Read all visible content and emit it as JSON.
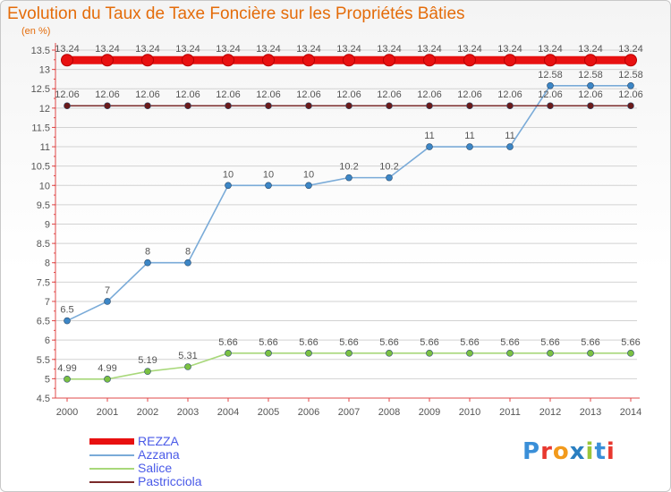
{
  "title": "Evolution du Taux de Taxe Foncière sur les Propriétés Bâties",
  "unit_label": "(en %)",
  "logo": {
    "text": "Proxiti",
    "letter_colors": [
      "#3a8fd8",
      "#e8382f",
      "#f29a1c",
      "#2a7fc1",
      "#9ac63a",
      "#3a8fd8",
      "#e8382f"
    ]
  },
  "colors": {
    "title": "#e46c0a",
    "axis": "#e04848",
    "grid": "#d2d2d2",
    "legend_text": "#4a5ae8"
  },
  "chart_data": {
    "type": "line",
    "title": "Evolution du Taux de Taxe Foncière sur les Propriétés Bâties",
    "xlabel": "",
    "ylabel": "(en %)",
    "x": [
      "2000",
      "2001",
      "2002",
      "2003",
      "2004",
      "2005",
      "2006",
      "2007",
      "2008",
      "2009",
      "2010",
      "2011",
      "2012",
      "2013",
      "2014"
    ],
    "ylim": [
      4.5,
      13.5
    ],
    "y_ticks": [
      "4.5",
      "5",
      "5.5",
      "6",
      "6.5",
      "7",
      "7.5",
      "8",
      "8.5",
      "9",
      "9.5",
      "10",
      "10.5",
      "11",
      "11.5",
      "12",
      "12.5",
      "13",
      "13.5"
    ],
    "grid": true,
    "series": [
      {
        "name": "REZZA",
        "color": "#e81010",
        "thick": true,
        "values": [
          13.24,
          13.24,
          13.24,
          13.24,
          13.24,
          13.24,
          13.24,
          13.24,
          13.24,
          13.24,
          13.24,
          13.24,
          13.24,
          13.24,
          13.24
        ],
        "labels": [
          "13.24",
          "13.24",
          "13.24",
          "13.24",
          "13.24",
          "13.24",
          "13.24",
          "13.24",
          "13.24",
          "13.24",
          "13.24",
          "13.24",
          "13.24",
          "13.24",
          "13.24"
        ]
      },
      {
        "name": "Azzana",
        "color": "#7aabd8",
        "point": "#3c86c6",
        "values": [
          6.5,
          7,
          8,
          8,
          10,
          10,
          10,
          10.2,
          10.2,
          11,
          11,
          11,
          12.58,
          12.58,
          12.58
        ],
        "labels": [
          "6.5",
          "7",
          "8",
          "8",
          "10",
          "10",
          "10",
          "10.2",
          "10.2",
          "11",
          "11",
          "11",
          "12.58",
          "12.58",
          "12.58"
        ]
      },
      {
        "name": "Salice",
        "color": "#a8d87a",
        "point": "#7bc142",
        "values": [
          4.99,
          4.99,
          5.19,
          5.31,
          5.66,
          5.66,
          5.66,
          5.66,
          5.66,
          5.66,
          5.66,
          5.66,
          5.66,
          5.66,
          5.66
        ],
        "labels": [
          "4.99",
          "4.99",
          "5.19",
          "5.31",
          "5.66",
          "5.66",
          "5.66",
          "5.66",
          "5.66",
          "5.66",
          "5.66",
          "5.66",
          "5.66",
          "5.66",
          "5.66"
        ]
      },
      {
        "name": "Pastricciola",
        "color": "#7a2a2a",
        "point": "#6a1a1a",
        "values": [
          12.06,
          12.06,
          12.06,
          12.06,
          12.06,
          12.06,
          12.06,
          12.06,
          12.06,
          12.06,
          12.06,
          12.06,
          12.06,
          12.06,
          12.06
        ],
        "labels": [
          "12.06",
          "12.06",
          "12.06",
          "12.06",
          "12.06",
          "12.06",
          "12.06",
          "12.06",
          "12.06",
          "12.06",
          "12.06",
          "12.06",
          "12.06",
          "12.06",
          "12.06"
        ]
      }
    ],
    "legend_position": "bottom-left"
  }
}
